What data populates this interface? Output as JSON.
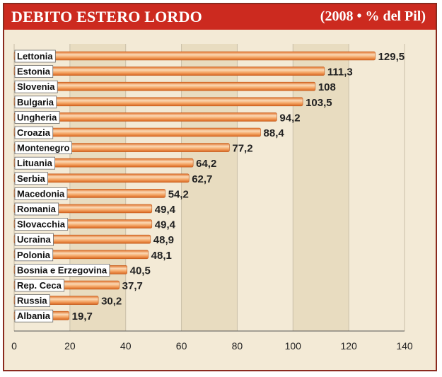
{
  "header": {
    "title": "DEBITO ESTERO LORDO",
    "subtitle": "(2008 • % del Pil)"
  },
  "colors": {
    "header_bg": "#cc2a1f",
    "bar_fill": "#f08a3c",
    "bar_highlight": "#fbd9b5",
    "panel_bg": "#f3ead6",
    "gridline": "#c9bfa8"
  },
  "chart_data": {
    "type": "bar",
    "orientation": "horizontal",
    "title": "DEBITO ESTERO LORDO",
    "subtitle": "(2008 • % del Pil)",
    "categories": [
      "Lettonia",
      "Estonia",
      "Slovenia",
      "Bulgaria",
      "Ungheria",
      "Croazia",
      "Montenegro",
      "Lituania",
      "Serbia",
      "Macedonia",
      "Romania",
      "Slovacchia",
      "Ucraina",
      "Polonia",
      "Bosnia e Erzegovina",
      "Rep. Ceca",
      "Russia",
      "Albania"
    ],
    "values": [
      129.5,
      111.3,
      108,
      103.5,
      94.2,
      88.4,
      77.2,
      64.2,
      62.7,
      54.2,
      49.4,
      49.4,
      48.9,
      48.1,
      40.5,
      37.7,
      30.2,
      19.7
    ],
    "value_labels": [
      "129,5",
      "111,3",
      "108",
      "103,5",
      "94,2",
      "88,4",
      "77,2",
      "64,2",
      "62,7",
      "54,2",
      "49,4",
      "49,4",
      "48,9",
      "48,1",
      "40,5",
      "37,7",
      "30,2",
      "19,7"
    ],
    "xlim": [
      0,
      140
    ],
    "xticks": [
      0,
      20,
      40,
      60,
      80,
      100,
      120,
      140
    ],
    "xtick_labels": [
      "0",
      "20",
      "40",
      "60",
      "80",
      "100",
      "120",
      "140"
    ],
    "grid": true
  }
}
